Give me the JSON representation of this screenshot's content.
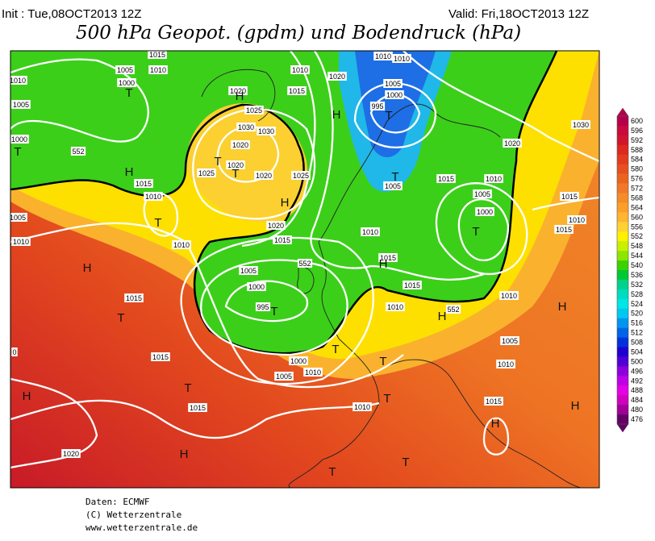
{
  "header": {
    "init": "Init : Tue,08OCT2013 12Z",
    "valid": "Valid: Fri,18OCT2013 12Z",
    "title": "500 hPa Geopot. (gpdm) und Bodendruck (hPa)"
  },
  "colorbar": {
    "ticks": [
      600,
      596,
      592,
      588,
      584,
      580,
      576,
      572,
      568,
      564,
      560,
      556,
      552,
      548,
      544,
      540,
      536,
      532,
      528,
      524,
      520,
      516,
      512,
      508,
      504,
      500,
      496,
      492,
      488,
      484,
      480,
      476
    ],
    "colors": [
      "#b4004b",
      "#c80a3c",
      "#d2142d",
      "#dc281e",
      "#e13c1e",
      "#e6501e",
      "#eb641e",
      "#f07828",
      "#f58c28",
      "#fa9f28",
      "#ffb432",
      "#ffd232",
      "#fff000",
      "#c8f000",
      "#8ce600",
      "#3cd200",
      "#00c832",
      "#00d28c",
      "#00dcbe",
      "#00e6e6",
      "#00c8f0",
      "#0096f0",
      "#0064e6",
      "#0032dc",
      "#1e00d2",
      "#5000d2",
      "#8c00dc",
      "#be00e6",
      "#e600e6",
      "#d200be",
      "#a00096",
      "#640064"
    ]
  },
  "map": {
    "isobar_labels": [
      "1015",
      "1005",
      "1010",
      "1000",
      "1010",
      "1005",
      "1000",
      "1020",
      "1025",
      "1030",
      "1030",
      "1020",
      "1020",
      "1020",
      "1025",
      "1025",
      "1015",
      "1010",
      "1020",
      "1010",
      "1010",
      "1005",
      "1000",
      "995",
      "1030",
      "1020",
      "1015",
      "1010",
      "1005",
      "1000",
      "1005",
      "1015",
      "1010",
      "1015",
      "1015",
      "1010",
      "1005",
      "1010",
      "1010",
      "1015",
      "1020",
      "1010",
      "1015",
      "1015",
      "1010",
      "1005",
      "1000",
      "995",
      "1000",
      "1005",
      "1015",
      "1015",
      "1010",
      "1010",
      "1005",
      "1010",
      "1015",
      "1010",
      "1015",
      "1020",
      "552",
      "552",
      "552",
      "0"
    ],
    "pressure_centers": [
      "T",
      "T",
      "H",
      "H",
      "T",
      "T",
      "H",
      "T",
      "H",
      "T",
      "T",
      "T",
      "H",
      "T",
      "T",
      "T",
      "H",
      "H",
      "T",
      "T",
      "H",
      "T",
      "H",
      "T",
      "T",
      "H",
      "H",
      "H"
    ]
  },
  "footer": [
    "Daten: ECMWF",
    "(C) Wetterzentrale",
    "www.wetterzentrale.de"
  ]
}
